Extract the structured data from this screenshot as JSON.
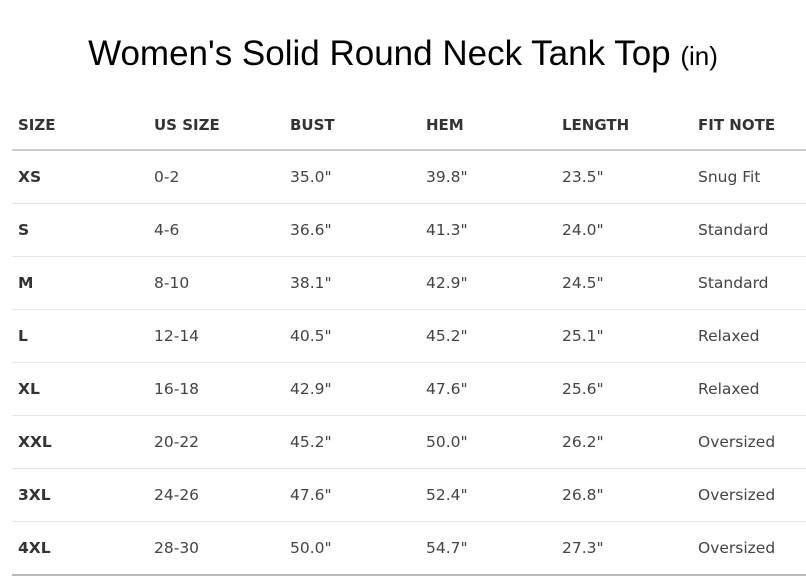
{
  "title": {
    "main": "Women's Solid Round Neck Tank Top",
    "unit": "(in)"
  },
  "table": {
    "headers": [
      "SIZE",
      "US SIZE",
      "BUST",
      "HEM",
      "LENGTH",
      "FIT NOTE"
    ],
    "rows": [
      [
        "XS",
        "0-2",
        "35.0\"",
        "39.8\"",
        "23.5\"",
        "Snug Fit"
      ],
      [
        "S",
        "4-6",
        "36.6\"",
        "41.3\"",
        "24.0\"",
        "Standard"
      ],
      [
        "M",
        "8-10",
        "38.1\"",
        "42.9\"",
        "24.5\"",
        "Standard"
      ],
      [
        "L",
        "12-14",
        "40.5\"",
        "45.2\"",
        "25.1\"",
        "Relaxed"
      ],
      [
        "XL",
        "16-18",
        "42.9\"",
        "47.6\"",
        "25.6\"",
        "Relaxed"
      ],
      [
        "XXL",
        "20-22",
        "45.2\"",
        "50.0\"",
        "26.2\"",
        "Oversized"
      ],
      [
        "3XL",
        "24-26",
        "47.6\"",
        "52.4\"",
        "26.8\"",
        "Oversized"
      ],
      [
        "4XL",
        "28-30",
        "50.0\"",
        "54.7\"",
        "27.3\"",
        "Oversized"
      ]
    ]
  }
}
